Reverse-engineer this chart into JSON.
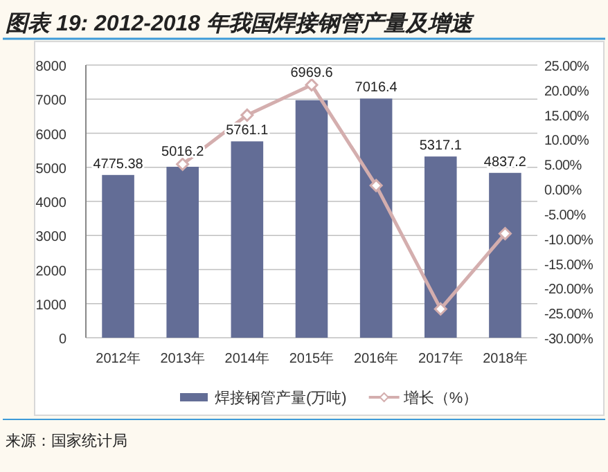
{
  "chart_data": {
    "type": "bar",
    "title": "图表 19:  2012-2018 年我国焊接钢管产量及增速",
    "categories": [
      "2012年",
      "2013年",
      "2014年",
      "2015年",
      "2016年",
      "2017年",
      "2018年"
    ],
    "series": [
      {
        "name": "焊接钢管产量(万吨)",
        "color": "#636d96",
        "values": [
          4775.38,
          5016.2,
          5761.1,
          6969.6,
          7016.4,
          5317.1,
          4837.2
        ],
        "value_labels": [
          "4775.38",
          "5016.2",
          "5761.1",
          "6969.6",
          "7016.4",
          "5317.1",
          "4837.2"
        ]
      },
      {
        "name": "增长（%）",
        "type": "line",
        "axis": "y2",
        "color": "#d4aeae",
        "values": [
          null,
          5.0,
          14.9,
          21.0,
          0.7,
          -24.2,
          -9.0
        ]
      }
    ],
    "marker": "diamond",
    "ylim": [
      0,
      8000
    ],
    "yticks": [
      0,
      1000,
      2000,
      3000,
      4000,
      5000,
      6000,
      7000,
      8000
    ],
    "y2lim": [
      -30,
      25
    ],
    "y2ticks": [
      {
        "value": -30,
        "label": "-30.00%"
      },
      {
        "value": -25,
        "label": "-25.00%"
      },
      {
        "value": -20,
        "label": "-20.00%"
      },
      {
        "value": -15,
        "label": "-15.00%"
      },
      {
        "value": -10,
        "label": "-10.00%"
      },
      {
        "value": -5,
        "label": "-5.00%"
      },
      {
        "value": 0,
        "label": "0.00%"
      },
      {
        "value": 5,
        "label": "5.00%"
      },
      {
        "value": 10,
        "label": "10.00%"
      },
      {
        "value": 15,
        "label": "15.00%"
      },
      {
        "value": 20,
        "label": "20.00%"
      },
      {
        "value": 25,
        "label": "25.00%"
      }
    ],
    "grid": "y",
    "legend": "bottom",
    "annotations": [
      "来源：国家统计局"
    ]
  }
}
